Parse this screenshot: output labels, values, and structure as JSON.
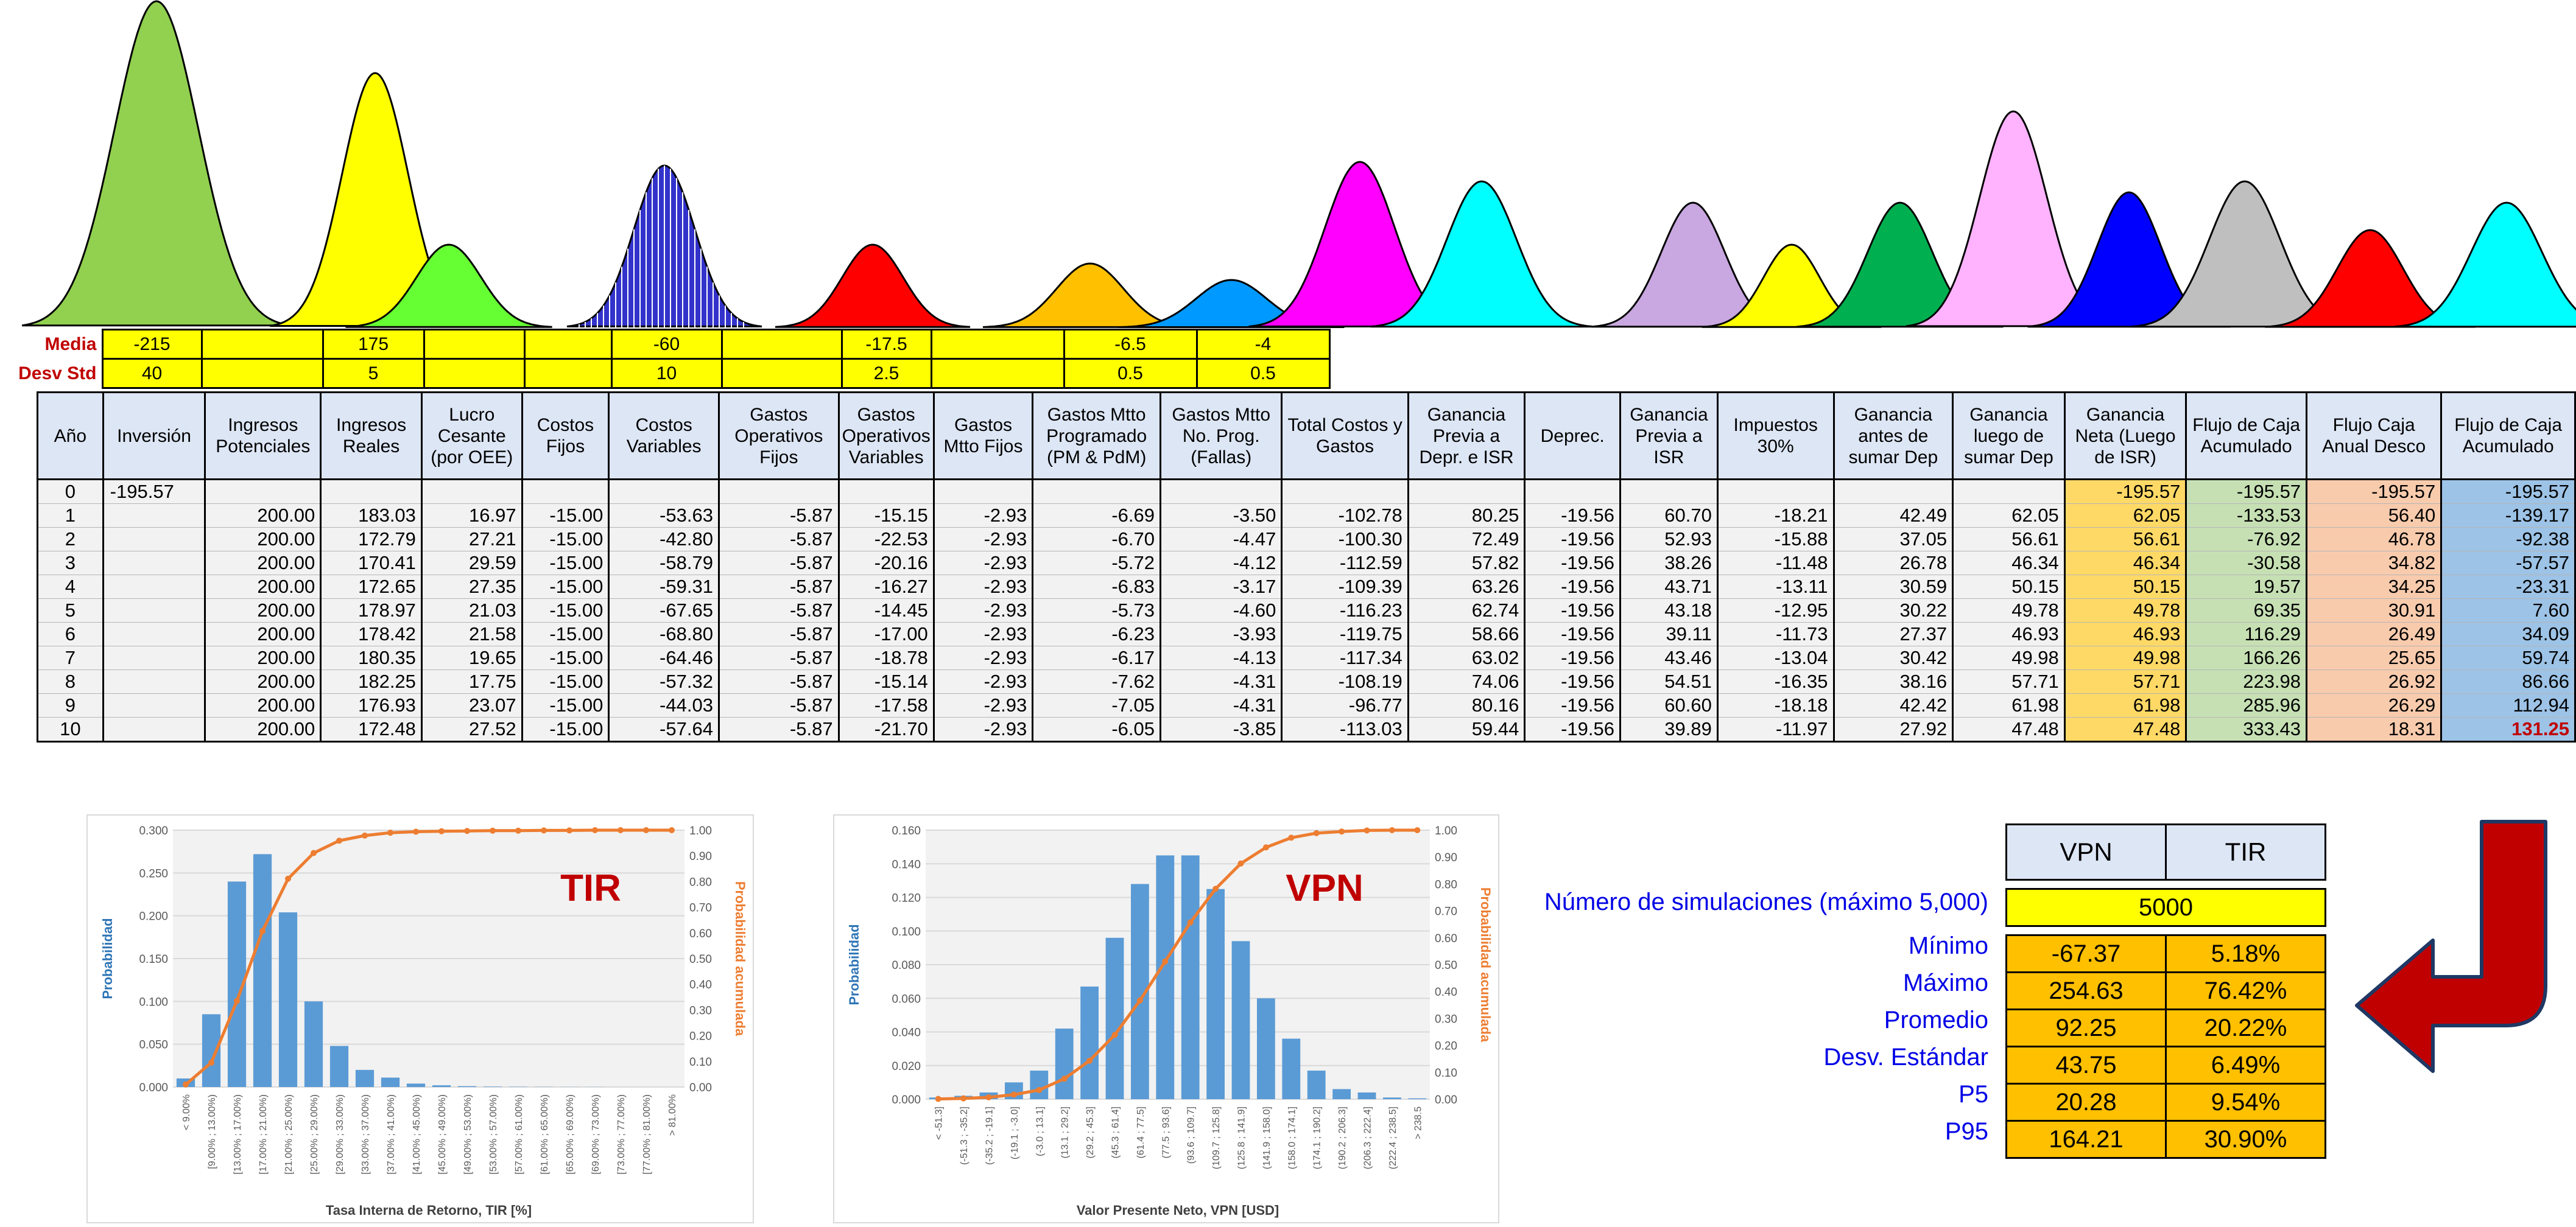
{
  "inputs": {
    "media_label": "Media",
    "desv_label": "Desv Std",
    "media": [
      "-215",
      "",
      "175",
      "",
      "",
      "-60",
      "",
      "-17.5",
      "",
      "-6.5",
      "-4"
    ],
    "desv": [
      "40",
      "",
      "5",
      "",
      "",
      "10",
      "",
      "2.5",
      "",
      "0.5",
      "0.5"
    ]
  },
  "table": {
    "headers": [
      "Año",
      "Inversión",
      "Ingresos Potenciales",
      "Ingresos Reales",
      "Lucro Cesante (por OEE)",
      "Costos Fijos",
      "Costos Variables",
      "Gastos Operativos Fijos",
      "Gastos Operativos Variables",
      "Gastos Mtto Fijos",
      "Gastos Mtto Programado (PM & PdM)",
      "Gastos Mtto No. Prog. (Fallas)",
      "Total Costos y Gastos",
      "Ganancia Previa a Depr. e ISR",
      "Deprec.",
      "Ganancia Previa a ISR",
      "Impuestos 30%",
      "Ganancia antes de sumar Dep",
      "Ganancia luego de sumar Dep",
      "Ganancia Neta (Luego de ISR)",
      "Flujo de Caja Acumulado",
      "Flujo Caja Anual Desco",
      "Flujo de Caja Acumulado"
    ],
    "rows": [
      [
        "0",
        "-195.57",
        "",
        "",
        "",
        "",
        "",
        "",
        "",
        "",
        "",
        "",
        "",
        "",
        "",
        "",
        "",
        "",
        "",
        "-195.57",
        "-195.57",
        "-195.57",
        "-195.57"
      ],
      [
        "1",
        "",
        "200.00",
        "183.03",
        "16.97",
        "-15.00",
        "-53.63",
        "-5.87",
        "-15.15",
        "-2.93",
        "-6.69",
        "-3.50",
        "-102.78",
        "80.25",
        "-19.56",
        "60.70",
        "-18.21",
        "42.49",
        "62.05",
        "62.05",
        "-133.53",
        "56.40",
        "-139.17"
      ],
      [
        "2",
        "",
        "200.00",
        "172.79",
        "27.21",
        "-15.00",
        "-42.80",
        "-5.87",
        "-22.53",
        "-2.93",
        "-6.70",
        "-4.47",
        "-100.30",
        "72.49",
        "-19.56",
        "52.93",
        "-15.88",
        "37.05",
        "56.61",
        "56.61",
        "-76.92",
        "46.78",
        "-92.38"
      ],
      [
        "3",
        "",
        "200.00",
        "170.41",
        "29.59",
        "-15.00",
        "-58.79",
        "-5.87",
        "-20.16",
        "-2.93",
        "-5.72",
        "-4.12",
        "-112.59",
        "57.82",
        "-19.56",
        "38.26",
        "-11.48",
        "26.78",
        "46.34",
        "46.34",
        "-30.58",
        "34.82",
        "-57.57"
      ],
      [
        "4",
        "",
        "200.00",
        "172.65",
        "27.35",
        "-15.00",
        "-59.31",
        "-5.87",
        "-16.27",
        "-2.93",
        "-6.83",
        "-3.17",
        "-109.39",
        "63.26",
        "-19.56",
        "43.71",
        "-13.11",
        "30.59",
        "50.15",
        "50.15",
        "19.57",
        "34.25",
        "-23.31"
      ],
      [
        "5",
        "",
        "200.00",
        "178.97",
        "21.03",
        "-15.00",
        "-67.65",
        "-5.87",
        "-14.45",
        "-2.93",
        "-5.73",
        "-4.60",
        "-116.23",
        "62.74",
        "-19.56",
        "43.18",
        "-12.95",
        "30.22",
        "49.78",
        "49.78",
        "69.35",
        "30.91",
        "7.60"
      ],
      [
        "6",
        "",
        "200.00",
        "178.42",
        "21.58",
        "-15.00",
        "-68.80",
        "-5.87",
        "-17.00",
        "-2.93",
        "-6.23",
        "-3.93",
        "-119.75",
        "58.66",
        "-19.56",
        "39.11",
        "-11.73",
        "27.37",
        "46.93",
        "46.93",
        "116.29",
        "26.49",
        "34.09"
      ],
      [
        "7",
        "",
        "200.00",
        "180.35",
        "19.65",
        "-15.00",
        "-64.46",
        "-5.87",
        "-18.78",
        "-2.93",
        "-6.17",
        "-4.13",
        "-117.34",
        "63.02",
        "-19.56",
        "43.46",
        "-13.04",
        "30.42",
        "49.98",
        "49.98",
        "166.26",
        "25.65",
        "59.74"
      ],
      [
        "8",
        "",
        "200.00",
        "182.25",
        "17.75",
        "-15.00",
        "-57.32",
        "-5.87",
        "-15.14",
        "-2.93",
        "-7.62",
        "-4.31",
        "-108.19",
        "74.06",
        "-19.56",
        "54.51",
        "-16.35",
        "38.16",
        "57.71",
        "57.71",
        "223.98",
        "26.92",
        "86.66"
      ],
      [
        "9",
        "",
        "200.00",
        "176.93",
        "23.07",
        "-15.00",
        "-44.03",
        "-5.87",
        "-17.58",
        "-2.93",
        "-7.05",
        "-4.31",
        "-96.77",
        "80.16",
        "-19.56",
        "60.60",
        "-18.18",
        "42.42",
        "61.98",
        "61.98",
        "285.96",
        "26.29",
        "112.94"
      ],
      [
        "10",
        "",
        "200.00",
        "172.48",
        "27.52",
        "-15.00",
        "-57.64",
        "-5.87",
        "-21.70",
        "-2.93",
        "-6.05",
        "-3.85",
        "-113.03",
        "59.44",
        "-19.56",
        "39.89",
        "-11.97",
        "27.92",
        "47.48",
        "47.48",
        "333.43",
        "18.31",
        "131.25"
      ]
    ]
  },
  "distribution_colors": [
    "#92d050",
    "#ffff00",
    "#66ff33",
    "#3333cc",
    "#ff0000",
    "#ffc000",
    "#0099ff",
    "#ff00ff",
    "#00ffff",
    "#c9a7e0",
    "#ffff00",
    "#00b050",
    "#ffb3ff",
    "#0000ff",
    "#bfbfbf",
    "#ff0000",
    "#00ffff"
  ],
  "chart_data": [
    {
      "type": "bar",
      "title": "TIR",
      "xlabel": "Tasa Interna de Retorno, TIR [%]",
      "ylabel": "Probabilidad",
      "y2label": "Probabilidad acumulada",
      "ylim": [
        0,
        0.3
      ],
      "y2lim": [
        0,
        1
      ],
      "yticks": [
        "0.000",
        "0.050",
        "0.100",
        "0.150",
        "0.200",
        "0.250",
        "0.300"
      ],
      "y2ticks": [
        "0.00",
        "0.10",
        "0.20",
        "0.30",
        "0.40",
        "0.50",
        "0.60",
        "0.70",
        "0.80",
        "0.90",
        "1.00"
      ],
      "categories": [
        "< 9.00%",
        "[9.00% ; 13.00%)",
        "[13.00% ; 17.00%)",
        "[17.00% ; 21.00%)",
        "[21.00% ; 25.00%)",
        "[25.00% ; 29.00%)",
        "[29.00% ; 33.00%)",
        "[33.00% ; 37.00%)",
        "[37.00% ; 41.00%)",
        "[41.00% ; 45.00%)",
        "[45.00% ; 49.00%)",
        "[49.00% ; 53.00%)",
        "[53.00% ; 57.00%)",
        "[57.00% ; 61.00%)",
        "[61.00% ; 65.00%)",
        "[65.00% ; 69.00%)",
        "[69.00% ; 73.00%)",
        "[73.00% ; 77.00%)",
        "[77.00% ; 81.00%)",
        "> 81.00%"
      ],
      "series": [
        {
          "values": [
            0.01,
            0.085,
            0.24,
            0.272,
            0.204,
            0.1,
            0.048,
            0.02,
            0.011,
            0.004,
            0.002,
            0.001,
            0.0005,
            0.0003,
            0.0002,
            0.0001,
            0.0001,
            0,
            0,
            0
          ]
        },
        {
          "values": [
            0.01,
            0.095,
            0.335,
            0.607,
            0.811,
            0.911,
            0.959,
            0.979,
            0.99,
            0.994,
            0.996,
            0.997,
            0.998,
            0.998,
            0.999,
            0.999,
            1.0,
            1.0,
            1.0,
            1.0
          ]
        }
      ]
    },
    {
      "type": "bar",
      "title": "VPN",
      "xlabel": "Valor Presente Neto, VPN [USD]",
      "ylabel": "Probabilidad",
      "y2label": "Probabilidad acumulada",
      "ylim": [
        0,
        0.16
      ],
      "y2lim": [
        0,
        1
      ],
      "yticks": [
        "0.000",
        "0.020",
        "0.040",
        "0.060",
        "0.080",
        "0.100",
        "0.120",
        "0.140",
        "0.160"
      ],
      "y2ticks": [
        "0.00",
        "0.10",
        "0.20",
        "0.30",
        "0.40",
        "0.50",
        "0.60",
        "0.70",
        "0.80",
        "0.90",
        "1.00"
      ],
      "categories": [
        "< -51.3]",
        "(-51.3 ; -35.2]",
        "(-35.2 ; -19.1]",
        "(-19.1 ; -3.0]",
        "(-3.0 ; 13.1]",
        "(13.1 ; 29.2]",
        "(29.2 ; 45.3]",
        "(45.3 ; 61.4]",
        "(61.4 ; 77.5]",
        "(77.5 ; 93.6]",
        "(93.6 ; 109.7]",
        "(109.7 ; 125.8]",
        "(125.8 ; 141.9]",
        "(141.9 ; 158.0]",
        "(158.0 ; 174.1]",
        "(174.1 ; 190.2]",
        "(190.2 ; 206.3]",
        "(206.3 ; 222.4]",
        "(222.4 ; 238.5]",
        "> 238.5"
      ],
      "series": [
        {
          "values": [
            0.001,
            0.002,
            0.004,
            0.01,
            0.017,
            0.042,
            0.067,
            0.096,
            0.128,
            0.145,
            0.145,
            0.125,
            0.094,
            0.06,
            0.036,
            0.017,
            0.006,
            0.004,
            0.001,
            0.0005
          ]
        },
        {
          "values": [
            0.001,
            0.003,
            0.007,
            0.017,
            0.034,
            0.076,
            0.143,
            0.239,
            0.367,
            0.512,
            0.657,
            0.782,
            0.876,
            0.936,
            0.972,
            0.989,
            0.995,
            0.999,
            1.0,
            1.0
          ]
        }
      ]
    }
  ],
  "summary": {
    "columns": [
      "VPN",
      "TIR"
    ],
    "sim_label": "Número de simulaciones (máximo 5,000)",
    "sim_value": "5000",
    "stats": [
      {
        "label": "Mínimo",
        "vpn": "-67.37",
        "tir": "5.18%"
      },
      {
        "label": "Máximo",
        "vpn": "254.63",
        "tir": "76.42%"
      },
      {
        "label": "Promedio",
        "vpn": "92.25",
        "tir": "20.22%"
      },
      {
        "label": "Desv. Estándar",
        "vpn": "43.75",
        "tir": "6.49%"
      },
      {
        "label": "P5",
        "vpn": "20.28",
        "tir": "9.54%"
      },
      {
        "label": "P95",
        "vpn": "164.21",
        "tir": "30.90%"
      }
    ]
  }
}
